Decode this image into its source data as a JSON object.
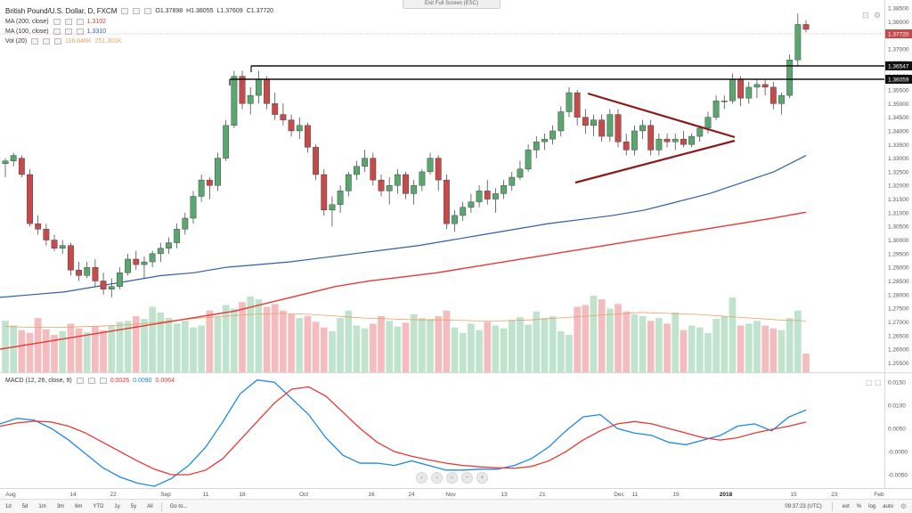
{
  "header": {
    "symbol": "British Pound/U.S. Dollar, D, FXCM",
    "ohlc": {
      "o": "O1.37898",
      "h": "H1.38055",
      "l": "L1.37609",
      "c": "C1.37720"
    },
    "exit_fullscreen": "Exit Full Screen (ESC)"
  },
  "legends": {
    "ma200": {
      "label": "MA (200, close)",
      "value": "1.3102",
      "color": "#e53935"
    },
    "ma100": {
      "label": "MA (100, close)",
      "value": "1.3310",
      "color": "#2f5fa8"
    },
    "vol": {
      "label": "Vol (20)",
      "value1": "116.646K",
      "value2": "251.301K",
      "color": "#e8a060"
    },
    "macd": {
      "label": "MACD (12, 26, close, 9)",
      "v1": "0.0026",
      "v2": "0.0090",
      "v3": "0.0064",
      "c1": "#e53935",
      "c2": "#1e88e5",
      "c3": "#e53935"
    }
  },
  "price_axis": {
    "labels": [
      "1.38500",
      "1.38000",
      "1.37500",
      "1.37000",
      "1.36500",
      "1.36000",
      "1.35500",
      "1.35000",
      "1.34500",
      "1.34000",
      "1.33500",
      "1.33000",
      "1.32500",
      "1.32000",
      "1.31500",
      "1.31000",
      "1.30500",
      "1.30000",
      "1.29500",
      "1.29000",
      "1.28500",
      "1.28000",
      "1.27500",
      "1.27000",
      "1.26500",
      "1.26000",
      "1.25500"
    ],
    "last_price": "1.37720",
    "level_1": "1.36547",
    "level_2": "1.36059"
  },
  "macd_axis": {
    "labels": [
      "0.0150",
      "0.0100",
      "0.0050",
      "-0.0000",
      "-0.0050"
    ]
  },
  "date_axis": {
    "labels": [
      "Aug",
      "14",
      "22",
      "Sep",
      "11",
      "18",
      "Oct",
      "16",
      "24",
      "Nov",
      "13",
      "21",
      "Dec",
      "11",
      "19",
      "2018",
      "15",
      "23",
      "Feb"
    ],
    "time": "09:37:23 (UTC)"
  },
  "toolbar": {
    "timeframes": [
      "1d",
      "5d",
      "1m",
      "3m",
      "6m",
      "YTD",
      "1y",
      "5y",
      "All",
      "Go to..."
    ],
    "right_items": [
      "ext",
      "%",
      "log",
      "auto"
    ]
  },
  "colors": {
    "up": "#5aa66f",
    "down": "#c54b4b",
    "vol_up": "#bfe3cc",
    "vol_down": "#f5bcc0",
    "triangle": "#8b1a1a"
  },
  "chart_data": {
    "type": "candlestick",
    "title": "British Pound/U.S. Dollar, D, FXCM",
    "y_range": [
      1.2535,
      1.386
    ],
    "candles": [
      [
        1.328,
        1.33,
        1.323,
        1.329
      ],
      [
        1.329,
        1.332,
        1.327,
        1.331
      ],
      [
        1.33,
        1.331,
        1.323,
        1.324
      ],
      [
        1.324,
        1.326,
        1.305,
        1.306
      ],
      [
        1.306,
        1.309,
        1.302,
        1.304
      ],
      [
        1.304,
        1.306,
        1.298,
        1.3
      ],
      [
        1.3,
        1.302,
        1.296,
        1.297
      ],
      [
        1.297,
        1.3,
        1.295,
        1.298
      ],
      [
        1.298,
        1.299,
        1.287,
        1.289
      ],
      [
        1.289,
        1.292,
        1.285,
        1.287
      ],
      [
        1.287,
        1.292,
        1.286,
        1.29
      ],
      [
        1.29,
        1.293,
        1.283,
        1.285
      ],
      [
        1.285,
        1.288,
        1.28,
        1.282
      ],
      [
        1.282,
        1.286,
        1.279,
        1.283
      ],
      [
        1.283,
        1.29,
        1.282,
        1.288
      ],
      [
        1.288,
        1.295,
        1.287,
        1.293
      ],
      [
        1.293,
        1.296,
        1.289,
        1.291
      ],
      [
        1.291,
        1.294,
        1.286,
        1.292
      ],
      [
        1.292,
        1.296,
        1.29,
        1.295
      ],
      [
        1.295,
        1.299,
        1.292,
        1.297
      ],
      [
        1.297,
        1.301,
        1.295,
        1.299
      ],
      [
        1.299,
        1.306,
        1.297,
        1.304
      ],
      [
        1.304,
        1.31,
        1.302,
        1.308
      ],
      [
        1.308,
        1.318,
        1.306,
        1.316
      ],
      [
        1.316,
        1.324,
        1.314,
        1.322
      ],
      [
        1.322,
        1.323,
        1.315,
        1.32
      ],
      [
        1.32,
        1.332,
        1.318,
        1.33
      ],
      [
        1.33,
        1.344,
        1.329,
        1.342
      ],
      [
        1.342,
        1.362,
        1.341,
        1.36
      ],
      [
        1.36,
        1.362,
        1.348,
        1.35
      ],
      [
        1.35,
        1.356,
        1.346,
        1.353
      ],
      [
        1.353,
        1.362,
        1.35,
        1.359
      ],
      [
        1.359,
        1.36,
        1.348,
        1.35
      ],
      [
        1.35,
        1.354,
        1.344,
        1.346
      ],
      [
        1.346,
        1.35,
        1.342,
        1.344
      ],
      [
        1.344,
        1.346,
        1.338,
        1.34
      ],
      [
        1.34,
        1.345,
        1.337,
        1.342
      ],
      [
        1.342,
        1.343,
        1.332,
        1.334
      ],
      [
        1.334,
        1.335,
        1.322,
        1.324
      ],
      [
        1.324,
        1.326,
        1.309,
        1.311
      ],
      [
        1.311,
        1.316,
        1.305,
        1.313
      ],
      [
        1.313,
        1.32,
        1.31,
        1.318
      ],
      [
        1.318,
        1.325,
        1.316,
        1.324
      ],
      [
        1.324,
        1.329,
        1.322,
        1.327
      ],
      [
        1.327,
        1.333,
        1.325,
        1.33
      ],
      [
        1.33,
        1.332,
        1.32,
        1.322
      ],
      [
        1.322,
        1.324,
        1.316,
        1.318
      ],
      [
        1.318,
        1.323,
        1.313,
        1.32
      ],
      [
        1.32,
        1.326,
        1.317,
        1.324
      ],
      [
        1.324,
        1.325,
        1.315,
        1.317
      ],
      [
        1.317,
        1.322,
        1.313,
        1.32
      ],
      [
        1.32,
        1.326,
        1.318,
        1.325
      ],
      [
        1.325,
        1.332,
        1.324,
        1.33
      ],
      [
        1.33,
        1.331,
        1.318,
        1.322
      ],
      [
        1.322,
        1.324,
        1.304,
        1.306
      ],
      [
        1.306,
        1.311,
        1.303,
        1.309
      ],
      [
        1.309,
        1.314,
        1.307,
        1.312
      ],
      [
        1.312,
        1.317,
        1.31,
        1.314
      ],
      [
        1.314,
        1.32,
        1.312,
        1.318
      ],
      [
        1.318,
        1.322,
        1.313,
        1.315
      ],
      [
        1.315,
        1.319,
        1.31,
        1.317
      ],
      [
        1.317,
        1.322,
        1.315,
        1.32
      ],
      [
        1.32,
        1.325,
        1.318,
        1.323
      ],
      [
        1.323,
        1.329,
        1.322,
        1.326
      ],
      [
        1.326,
        1.335,
        1.325,
        1.333
      ],
      [
        1.333,
        1.338,
        1.33,
        1.336
      ],
      [
        1.336,
        1.339,
        1.333,
        1.337
      ],
      [
        1.337,
        1.342,
        1.335,
        1.34
      ],
      [
        1.34,
        1.349,
        1.338,
        1.347
      ],
      [
        1.347,
        1.356,
        1.345,
        1.354
      ],
      [
        1.354,
        1.355,
        1.342,
        1.345
      ],
      [
        1.345,
        1.348,
        1.339,
        1.342
      ],
      [
        1.342,
        1.346,
        1.338,
        1.344
      ],
      [
        1.344,
        1.346,
        1.336,
        1.338
      ],
      [
        1.338,
        1.348,
        1.336,
        1.346
      ],
      [
        1.346,
        1.348,
        1.334,
        1.336
      ],
      [
        1.336,
        1.339,
        1.331,
        1.333
      ],
      [
        1.333,
        1.342,
        1.331,
        1.34
      ],
      [
        1.34,
        1.344,
        1.337,
        1.342
      ],
      [
        1.342,
        1.344,
        1.331,
        1.333
      ],
      [
        1.333,
        1.339,
        1.331,
        1.337
      ],
      [
        1.337,
        1.339,
        1.334,
        1.336
      ],
      [
        1.336,
        1.339,
        1.333,
        1.337
      ],
      [
        1.337,
        1.34,
        1.334,
        1.335
      ],
      [
        1.335,
        1.339,
        1.334,
        1.338
      ],
      [
        1.338,
        1.342,
        1.336,
        1.341
      ],
      [
        1.341,
        1.347,
        1.339,
        1.345
      ],
      [
        1.345,
        1.353,
        1.344,
        1.351
      ],
      [
        1.351,
        1.353,
        1.348,
        1.351
      ],
      [
        1.351,
        1.361,
        1.35,
        1.359
      ],
      [
        1.359,
        1.36,
        1.349,
        1.352
      ],
      [
        1.352,
        1.358,
        1.35,
        1.356
      ],
      [
        1.356,
        1.359,
        1.352,
        1.357
      ],
      [
        1.357,
        1.359,
        1.353,
        1.356
      ],
      [
        1.356,
        1.358,
        1.348,
        1.35
      ],
      [
        1.35,
        1.354,
        1.346,
        1.353
      ],
      [
        1.353,
        1.368,
        1.352,
        1.366
      ],
      [
        1.366,
        1.383,
        1.364,
        1.379
      ],
      [
        1.379,
        1.3806,
        1.3761,
        1.3772
      ]
    ],
    "volume_ratio": [
      0.55,
      0.5,
      0.45,
      0.42,
      0.58,
      0.46,
      0.4,
      0.44,
      0.52,
      0.47,
      0.43,
      0.49,
      0.45,
      0.5,
      0.54,
      0.55,
      0.6,
      0.57,
      0.7,
      0.64,
      0.58,
      0.52,
      0.55,
      0.48,
      0.5,
      0.66,
      0.59,
      0.72,
      0.68,
      0.75,
      0.81,
      0.78,
      0.7,
      0.73,
      0.66,
      0.62,
      0.58,
      0.6,
      0.54,
      0.48,
      0.44,
      0.58,
      0.66,
      0.5,
      0.47,
      0.52,
      0.6,
      0.55,
      0.49,
      0.53,
      0.62,
      0.58,
      0.57,
      0.6,
      0.66,
      0.48,
      0.42,
      0.52,
      0.45,
      0.54,
      0.5,
      0.47,
      0.56,
      0.59,
      0.51,
      0.65,
      0.58,
      0.6,
      0.44,
      0.4,
      0.7,
      0.72,
      0.82,
      0.78,
      0.68,
      0.73,
      0.65,
      0.62,
      0.6,
      0.55,
      0.58,
      0.52,
      0.64,
      0.45,
      0.5,
      0.48,
      0.42,
      0.57,
      0.6,
      0.8,
      0.5,
      0.52,
      0.55,
      0.5,
      0.47,
      0.45,
      0.58,
      0.66,
      0.2
    ],
    "ma100": [
      1.279,
      1.28,
      1.281,
      1.283,
      1.285,
      1.287,
      1.288,
      1.29,
      1.291,
      1.292,
      1.2935,
      1.295,
      1.2965,
      1.298,
      1.3,
      1.302,
      1.304,
      1.306,
      1.3075,
      1.309,
      1.311,
      1.314,
      1.317,
      1.321,
      1.325,
      1.331
    ],
    "ma200": [
      1.26,
      1.262,
      1.264,
      1.266,
      1.268,
      1.27,
      1.272,
      1.274,
      1.277,
      1.28,
      1.283,
      1.285,
      1.2865,
      1.288,
      1.29,
      1.292,
      1.294,
      1.296,
      1.298,
      1.3,
      1.302,
      1.304,
      1.306,
      1.308,
      1.3102
    ],
    "vol_ma": [
      0.49,
      0.48,
      0.48,
      0.49,
      0.5,
      0.52,
      0.55,
      0.58,
      0.6,
      0.62,
      0.63,
      0.62,
      0.6,
      0.58,
      0.57,
      0.56,
      0.56,
      0.55,
      0.55,
      0.56,
      0.58,
      0.6,
      0.62,
      0.64,
      0.63,
      0.62,
      0.6,
      0.58,
      0.56,
      0.55
    ],
    "macd_range": [
      -0.0075,
      0.016
    ],
    "macd_line": [
      0.006,
      0.0072,
      0.0068,
      0.005,
      0.0025,
      -0.0005,
      -0.0035,
      -0.0055,
      -0.0068,
      -0.0075,
      -0.0058,
      -0.003,
      0.001,
      0.0065,
      0.0125,
      0.0155,
      0.015,
      0.0115,
      0.008,
      0.003,
      -0.0008,
      -0.0025,
      -0.0025,
      -0.003,
      -0.002,
      -0.003,
      -0.004,
      -0.004,
      -0.0038,
      -0.0038,
      -0.003,
      -0.0015,
      0.001,
      0.0045,
      0.0075,
      0.008,
      0.005,
      0.004,
      0.0035,
      0.002,
      0.0015,
      0.0025,
      0.0035,
      0.0055,
      0.006,
      0.0045,
      0.0075,
      0.009
    ],
    "macd_signal": [
      0.0055,
      0.0062,
      0.0066,
      0.0064,
      0.0055,
      0.004,
      0.002,
      0.0,
      -0.002,
      -0.0038,
      -0.005,
      -0.005,
      -0.004,
      -0.0015,
      0.0025,
      0.0065,
      0.0105,
      0.0135,
      0.014,
      0.012,
      0.0085,
      0.005,
      0.002,
      0.0,
      -0.001,
      -0.0018,
      -0.0025,
      -0.003,
      -0.0033,
      -0.0035,
      -0.0036,
      -0.0032,
      -0.002,
      0.0,
      0.0025,
      0.0045,
      0.006,
      0.0065,
      0.006,
      0.005,
      0.004,
      0.003,
      0.0025,
      0.003,
      0.004,
      0.0048,
      0.0055,
      0.0064
    ]
  }
}
